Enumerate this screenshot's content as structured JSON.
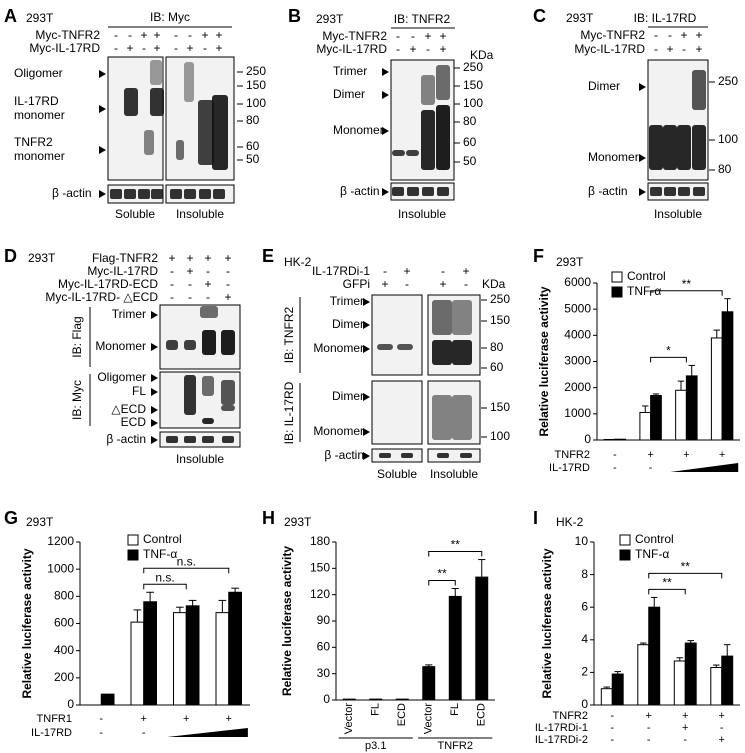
{
  "blots": [
    {
      "panel": "A",
      "cell_line": "293T",
      "antibody": "IB: Myc",
      "rows": [
        {
          "label": "Myc-TNFR2",
          "signs": [
            "-",
            "-",
            "+",
            "+",
            "-",
            "-",
            "+",
            "+"
          ]
        },
        {
          "label": "Myc-IL-17RD",
          "signs": [
            "-",
            "+",
            "-",
            "+",
            "-",
            "+",
            "-",
            "+"
          ]
        }
      ],
      "sections": [
        {
          "bands": [
            "Oligomer",
            [
              "IL-17RD",
              "monomer"
            ],
            [
              "TNFR2",
              "monomer"
            ]
          ],
          "markers": [
            250,
            150,
            100,
            80,
            60,
            50
          ]
        }
      ],
      "loading": "β -actin",
      "fractions": [
        "Soluble",
        "Insoluble"
      ]
    },
    {
      "panel": "B",
      "cell_line": "293T",
      "antibody": "IB: TNFR2",
      "kda": "KDa",
      "rows": [
        {
          "label": "Myc-TNFR2",
          "signs": [
            "-",
            "-",
            "+",
            "+"
          ]
        },
        {
          "label": "Myc-IL-17RD",
          "signs": [
            "-",
            "+",
            "-",
            "+"
          ]
        }
      ],
      "sections": [
        {
          "bands": [
            "Trimer",
            "Dimer",
            "Monomer"
          ],
          "markers": [
            250,
            150,
            100,
            80,
            60,
            50
          ]
        }
      ],
      "loading": "β -actin",
      "fractions": [
        "Insoluble"
      ]
    },
    {
      "panel": "C",
      "cell_line": "293T",
      "antibody": "IB: IL-17RD",
      "rows": [
        {
          "label": "Myc-TNFR2",
          "signs": [
            "-",
            "-",
            "+",
            "+"
          ]
        },
        {
          "label": "Myc-IL-17RD",
          "signs": [
            "-",
            "+",
            "-",
            "+"
          ]
        }
      ],
      "sections": [
        {
          "bands": [
            "Dimer",
            "Monomer"
          ],
          "markers": [
            250,
            100,
            80
          ]
        }
      ],
      "loading": "β -actin",
      "fractions": [
        "Insoluble"
      ]
    },
    {
      "panel": "D",
      "cell_line": "293T",
      "rows": [
        {
          "label": "Flag-TNFR2",
          "signs": [
            "+",
            "+",
            "+",
            "+"
          ]
        },
        {
          "label": "Myc-IL-17RD",
          "signs": [
            "-",
            "+",
            "-",
            "-"
          ]
        },
        {
          "label": "Myc-IL-17RD-ECD",
          "signs": [
            "-",
            "-",
            "+",
            "-"
          ]
        },
        {
          "label": "Myc-IL-17RD- △ECD",
          "signs": [
            "-",
            "-",
            "-",
            "+"
          ]
        }
      ],
      "sections": [
        {
          "antibody": "IB: Flag",
          "bands": [
            "Trimer",
            "Monomer"
          ]
        },
        {
          "antibody": "IB: Myc",
          "bands": [
            "Oligomer",
            "FL",
            "△ECD",
            "ECD"
          ]
        }
      ],
      "loading": "β -actin",
      "fractions": [
        "Insoluble"
      ]
    },
    {
      "panel": "E",
      "cell_line": "HK-2",
      "kda": "KDa",
      "rows": [
        {
          "label": "IL-17RDi-1",
          "signs": [
            "-",
            "+",
            "-",
            "+"
          ]
        },
        {
          "label": "GFPi",
          "signs": [
            "+",
            "-",
            "+",
            "-"
          ]
        }
      ],
      "sections": [
        {
          "antibody": "IB: TNFR2",
          "bands": [
            "Trimer",
            "Dimer",
            "Monomer"
          ],
          "markers": [
            250,
            150,
            80,
            60
          ]
        },
        {
          "antibody": "IB: IL-17RD",
          "bands": [
            "Dimer",
            "Monomer"
          ],
          "markers": [
            150,
            100
          ]
        }
      ],
      "loading": "β -actin",
      "fractions": [
        "Soluble",
        "Insoluble"
      ]
    }
  ],
  "chart_data": [
    {
      "type": "bar",
      "panel": "F",
      "cell_line": "293T",
      "y_label": "Relative luciferase activity",
      "ylim": [
        0,
        6000
      ],
      "yticks": [
        0,
        1000,
        2000,
        3000,
        4000,
        5000,
        6000
      ],
      "series": [
        {
          "name": "Control",
          "color": "#ffffff",
          "values": [
            20,
            1050,
            1900,
            3900
          ],
          "errors": [
            null,
            250,
            350,
            300
          ]
        },
        {
          "name": "TNF-α",
          "color": "#000000",
          "values": [
            30,
            1700,
            2450,
            4900
          ],
          "errors": [
            null,
            60,
            400,
            500
          ]
        }
      ],
      "conditions": [
        {
          "label": "TNFR2",
          "signs": [
            "-",
            "+",
            "+",
            "+"
          ]
        },
        {
          "label": "IL-17RD",
          "signs": [
            "-",
            "-",
            null,
            null
          ],
          "ramp": true
        }
      ],
      "significance": [
        {
          "label": "*",
          "from": 1,
          "to": 2
        },
        {
          "label": "**",
          "from": 1,
          "to": 3
        }
      ]
    },
    {
      "type": "bar",
      "panel": "G",
      "cell_line": "293T",
      "y_label": "Relative luciferase activity",
      "ylim": [
        0,
        1200
      ],
      "yticks": [
        0,
        200,
        400,
        600,
        800,
        1000,
        1200
      ],
      "series": [
        {
          "name": "Control",
          "color": "#ffffff",
          "values": [
            null,
            610,
            680,
            680
          ],
          "errors": [
            null,
            90,
            40,
            90
          ]
        },
        {
          "name": "TNF-α",
          "color": "#000000",
          "values": [
            80,
            760,
            730,
            830
          ],
          "errors": [
            null,
            70,
            40,
            30
          ]
        }
      ],
      "conditions": [
        {
          "label": "TNFR1",
          "signs": [
            "-",
            "+",
            "+",
            "+"
          ]
        },
        {
          "label": "IL-17RD",
          "signs": [
            "-",
            "-",
            null,
            null
          ],
          "ramp": true
        }
      ],
      "significance": [
        {
          "label": "n.s.",
          "from": 1,
          "to": 2
        },
        {
          "label": "n.s.",
          "from": 1,
          "to": 3
        }
      ]
    },
    {
      "type": "bar",
      "panel": "H",
      "cell_line": "293T",
      "y_label": "Relative luciferase activity",
      "ylim": [
        0,
        180
      ],
      "yticks": [
        0,
        30,
        60,
        90,
        120,
        150,
        180
      ],
      "categories": [
        "Vector",
        "FL",
        "ECD",
        "Vector",
        "FL",
        "ECD"
      ],
      "groups": [
        {
          "label": "p3.1",
          "from": 0,
          "to": 2
        },
        {
          "label": "TNFR2",
          "from": 3,
          "to": 5
        }
      ],
      "series": [
        {
          "color": "#000000",
          "values": [
            1,
            1,
            1,
            38,
            118,
            140
          ],
          "errors": [
            null,
            null,
            null,
            2,
            9,
            20
          ]
        }
      ],
      "significance": [
        {
          "label": "**",
          "from": 3,
          "to": 4
        },
        {
          "label": "**",
          "from": 3,
          "to": 5
        }
      ]
    },
    {
      "type": "bar",
      "panel": "I",
      "cell_line": "HK-2",
      "y_label": "Relative luciferase activity",
      "ylim": [
        0,
        10
      ],
      "yticks": [
        0,
        2,
        4,
        6,
        8,
        10
      ],
      "series": [
        {
          "name": "Control",
          "color": "#ffffff",
          "values": [
            1.0,
            3.7,
            2.7,
            2.3
          ],
          "errors": [
            0.1,
            0.1,
            0.2,
            0.15
          ]
        },
        {
          "name": "TNF-α",
          "color": "#000000",
          "values": [
            1.9,
            6.0,
            3.8,
            3.0
          ],
          "errors": [
            0.15,
            0.6,
            0.15,
            0.7
          ]
        }
      ],
      "conditions": [
        {
          "label": "TNFR2",
          "signs": [
            "-",
            "+",
            "+",
            "+"
          ]
        },
        {
          "label": "IL-17RDi-1",
          "signs": [
            "-",
            "-",
            "+",
            "-"
          ]
        },
        {
          "label": "IL-17RDi-2",
          "signs": [
            "-",
            "-",
            "-",
            "+"
          ]
        }
      ],
      "significance": [
        {
          "label": "**",
          "from": 1,
          "to": 2
        },
        {
          "label": "**",
          "from": 1,
          "to": 3
        }
      ]
    }
  ]
}
